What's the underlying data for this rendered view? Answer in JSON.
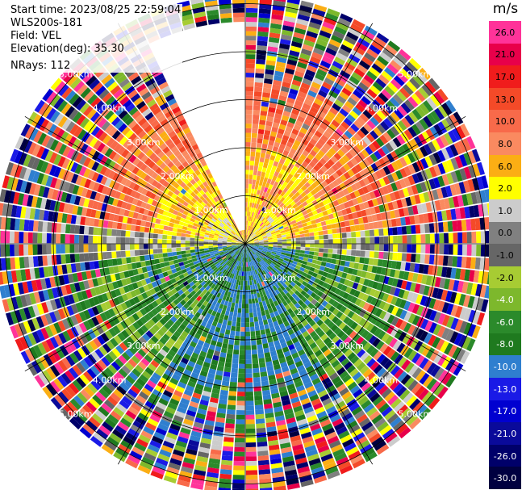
{
  "meta": {
    "start_time": "Start time: 2023/08/25 22:59:04",
    "site": "WLS200s-181",
    "field": "Field: VEL",
    "elevation": "Elevation(deg): 35.30",
    "nrays": "NRays: 112"
  },
  "colorbar": {
    "unit": "m/s",
    "levels": [
      {
        "label": "26.0",
        "color": "#ff3399"
      },
      {
        "label": "21.0",
        "color": "#e8004a"
      },
      {
        "label": "17.0",
        "color": "#f01c1c"
      },
      {
        "label": "13.0",
        "color": "#f44a28"
      },
      {
        "label": "10.0",
        "color": "#f86a4a"
      },
      {
        "label": "8.0",
        "color": "#fa8a60"
      },
      {
        "label": "6.0",
        "color": "#fbae14"
      },
      {
        "label": "2.0",
        "color": "#ffff00"
      },
      {
        "label": "1.0",
        "color": "#cccccc"
      },
      {
        "label": "0.0",
        "color": "#808080"
      },
      {
        "label": "-1.0",
        "color": "#666666"
      },
      {
        "label": "-2.0",
        "color": "#a7cc33"
      },
      {
        "label": "-4.0",
        "color": "#7db82c"
      },
      {
        "label": "-6.0",
        "color": "#2b8a2b"
      },
      {
        "label": "-8.0",
        "color": "#1f7a1f"
      },
      {
        "label": "-10.0",
        "color": "#2f7fcf"
      },
      {
        "label": "-13.0",
        "color": "#1a1ae6"
      },
      {
        "label": "-17.0",
        "color": "#0000d0"
      },
      {
        "label": "-21.0",
        "color": "#0a0a9a"
      },
      {
        "label": "-26.0",
        "color": "#00006a"
      },
      {
        "label": "-30.0",
        "color": "#000040"
      }
    ]
  },
  "chart_data": {
    "type": "heatmap",
    "projection": "polar-ppi",
    "field": "VEL",
    "units": "m/s",
    "nrays": 112,
    "range_rings_km": [
      1.0,
      2.0,
      3.0,
      4.0,
      5.0
    ],
    "max_range_km": 5.2,
    "range_labels": [
      "1.00km",
      "2.00km",
      "3.00km",
      "4.00km",
      "5.00km"
    ],
    "missing_sector_azimuth_deg": [
      334,
      360
    ],
    "velocity_pattern": {
      "north_upper_sector": "6.0 to 10.0",
      "north_inner": "2.0 to 6.0",
      "east_west_band": "-1.0 to 1.0",
      "south_inner": "-10.0 to -6.0",
      "far_range": "noise (all levels)"
    }
  }
}
